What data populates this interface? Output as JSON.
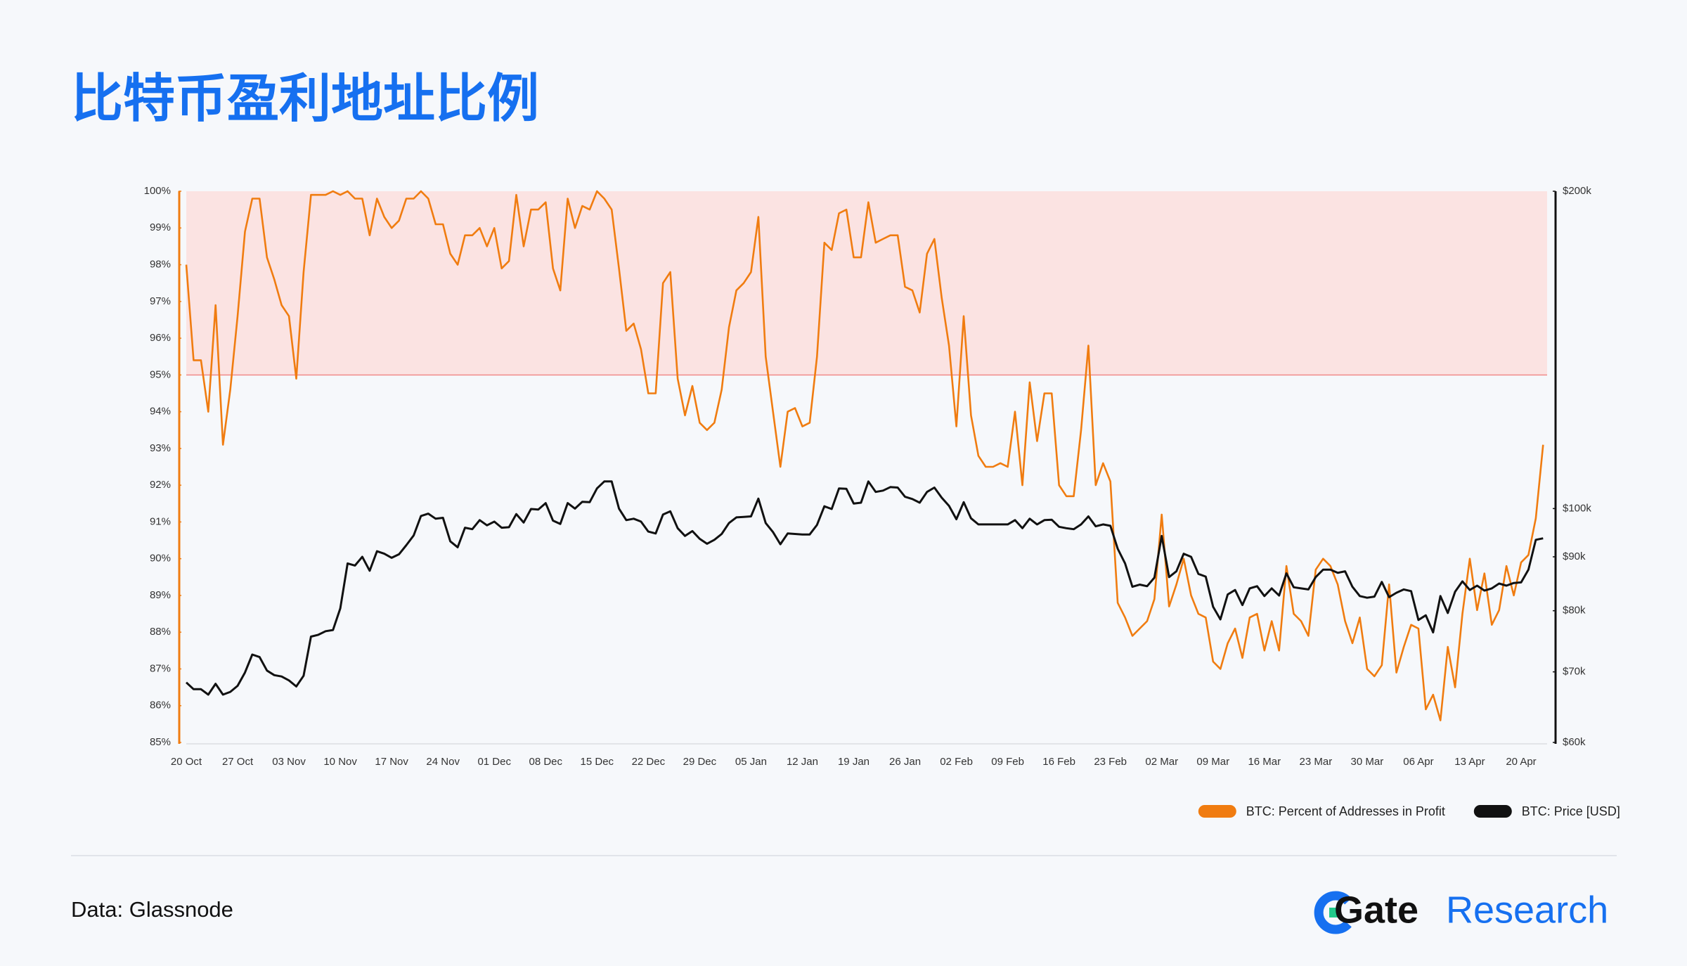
{
  "chart_data": {
    "type": "line",
    "title": "比特币盈利地址比例",
    "categories": [
      "20 Oct",
      null,
      null,
      null,
      null,
      null,
      null,
      "27 Oct",
      null,
      null,
      null,
      null,
      null,
      null,
      "03 Nov",
      null,
      null,
      null,
      null,
      null,
      null,
      "10 Nov",
      null,
      null,
      null,
      null,
      null,
      null,
      "17 Nov",
      null,
      null,
      null,
      null,
      null,
      null,
      "24 Nov",
      null,
      null,
      null,
      null,
      null,
      null,
      "01 Dec",
      null,
      null,
      null,
      null,
      null,
      null,
      "08 Dec",
      null,
      null,
      null,
      null,
      null,
      null,
      "15 Dec",
      null,
      null,
      null,
      null,
      null,
      null,
      "22 Dec",
      null,
      null,
      null,
      null,
      null,
      null,
      "29 Dec",
      null,
      null,
      null,
      null,
      null,
      null,
      "05 Jan",
      null,
      null,
      null,
      null,
      null,
      null,
      "12 Jan",
      null,
      null,
      null,
      null,
      null,
      null,
      "19 Jan",
      null,
      null,
      null,
      null,
      null,
      null,
      "26 Jan",
      null,
      null,
      null,
      null,
      null,
      null,
      "02 Feb",
      null,
      null,
      null,
      null,
      null,
      null,
      "09 Feb",
      null,
      null,
      null,
      null,
      null,
      null,
      "16 Feb",
      null,
      null,
      null,
      null,
      null,
      null,
      "23 Feb",
      null,
      null,
      null,
      null,
      null,
      null,
      "02 Mar",
      null,
      null,
      null,
      null,
      null,
      null,
      "09 Mar",
      null,
      null,
      null,
      null,
      null,
      null,
      "16 Mar",
      null,
      null,
      null,
      null,
      null,
      null,
      "23 Mar",
      null,
      null,
      null,
      null,
      null,
      null,
      "30 Mar",
      null,
      null,
      null,
      null,
      null,
      null,
      "06 Apr",
      null,
      null,
      null,
      null,
      null,
      null,
      "13 Apr",
      null,
      null,
      null,
      null,
      null,
      null,
      "20 Apr",
      null,
      null,
      null
    ],
    "series": [
      {
        "name": "BTC: Percent of Addresses in Profit",
        "color": "#f07c10",
        "axis": "y",
        "values": [
          98.0,
          95.4,
          95.4,
          94.0,
          96.9,
          93.1,
          94.6,
          96.6,
          98.9,
          99.8,
          99.8,
          98.2,
          97.6,
          96.9,
          96.6,
          94.9,
          97.8,
          99.9,
          99.9,
          99.9,
          100.0,
          99.9,
          100.0,
          99.8,
          99.8,
          98.8,
          99.8,
          99.3,
          99.0,
          99.2,
          99.8,
          99.8,
          100.0,
          99.8,
          99.1,
          99.1,
          98.3,
          98.0,
          98.8,
          98.8,
          99.0,
          98.5,
          99.0,
          97.9,
          98.1,
          99.9,
          98.5,
          99.5,
          99.5,
          99.7,
          97.9,
          97.3,
          99.8,
          99.0,
          99.6,
          99.5,
          100.0,
          99.8,
          99.5,
          97.9,
          96.2,
          96.4,
          95.7,
          94.5,
          94.5,
          97.5,
          97.8,
          94.9,
          93.9,
          94.7,
          93.7,
          93.5,
          93.7,
          94.6,
          96.3,
          97.3,
          97.5,
          97.8,
          99.3,
          95.5,
          94.0,
          92.5,
          94.0,
          94.1,
          93.6,
          93.7,
          95.5,
          98.6,
          98.4,
          99.4,
          99.5,
          98.2,
          98.2,
          99.7,
          98.6,
          98.7,
          98.8,
          98.8,
          97.4,
          97.3,
          96.7,
          98.3,
          98.7,
          97.1,
          95.8,
          93.6,
          96.6,
          93.9,
          92.8,
          92.5,
          92.5,
          92.6,
          92.5,
          94.0,
          92.0,
          94.8,
          93.2,
          94.5,
          94.5,
          92.0,
          91.7,
          91.7,
          93.5,
          95.8,
          92.0,
          92.6,
          92.1,
          88.8,
          88.4,
          87.9,
          88.1,
          88.3,
          88.9,
          91.2,
          88.7,
          89.3,
          90.0,
          89.0,
          88.5,
          88.4,
          87.2,
          87.0,
          87.7,
          88.1,
          87.3,
          88.4,
          88.5,
          87.5,
          88.3,
          87.5,
          89.8,
          88.5,
          88.3,
          87.9,
          89.7,
          90.0,
          89.8,
          89.3,
          88.3,
          87.7,
          88.4,
          87.0,
          86.8,
          87.1,
          89.3,
          86.9,
          87.6,
          88.2,
          88.1,
          85.9,
          86.3,
          85.6,
          87.6,
          86.5,
          88.5,
          90.0,
          88.6,
          89.6,
          88.2,
          88.6,
          89.8,
          89.0,
          89.9,
          90.1,
          91.1,
          93.1
        ]
      },
      {
        "name": "BTC: Price [USD]",
        "color": "#111111",
        "axis": "y2",
        "values": [
          68400,
          67400,
          67400,
          66600,
          68200,
          66600,
          67000,
          67900,
          69900,
          72700,
          72300,
          70200,
          69500,
          69300,
          68700,
          67800,
          69400,
          75600,
          75900,
          76500,
          76700,
          80400,
          88700,
          88300,
          90000,
          87300,
          91100,
          90600,
          89800,
          90500,
          92300,
          94300,
          98400,
          98900,
          97800,
          98000,
          93100,
          91900,
          95900,
          95600,
          97500,
          96400,
          97200,
          95900,
          96000,
          98800,
          97000,
          99900,
          99800,
          101200,
          97400,
          96700,
          101200,
          100000,
          101500,
          101400,
          104500,
          106100,
          106100,
          100000,
          97500,
          97800,
          97200,
          95100,
          94700,
          98700,
          99400,
          95800,
          94200,
          95200,
          93600,
          92600,
          93400,
          94600,
          96900,
          98100,
          98200,
          98300,
          102200,
          96900,
          95000,
          92500,
          94700,
          94600,
          94500,
          94500,
          96500,
          100500,
          99900,
          104500,
          104400,
          101100,
          101300,
          106100,
          103700,
          104000,
          104800,
          104700,
          102600,
          102100,
          101300,
          103700,
          104700,
          102400,
          100600,
          97700,
          101400,
          97900,
          96600,
          96600,
          96600,
          96600,
          96600,
          97500,
          95800,
          97800,
          96600,
          97500,
          97600,
          96100,
          95800,
          95600,
          96600,
          98300,
          96200,
          96600,
          96300,
          91600,
          88700,
          84300,
          84700,
          84400,
          86000,
          94200,
          86100,
          87200,
          90600,
          90000,
          86700,
          86200,
          80700,
          78500,
          82900,
          83700,
          81000,
          84000,
          84400,
          82600,
          84000,
          82700,
          86800,
          84200,
          84000,
          83800,
          86100,
          87500,
          87500,
          86900,
          87200,
          84300,
          82600,
          82300,
          82500,
          85200,
          82400,
          83200,
          83800,
          83500,
          78400,
          79200,
          76300,
          82600,
          79600,
          83400,
          85300,
          83700,
          84500,
          83600,
          84000,
          84900,
          84500,
          85000,
          85100,
          87500,
          93400,
          93700
        ]
      }
    ],
    "ylim": [
      85,
      100
    ],
    "yticks": [
      {
        "value": 85,
        "label": "85%"
      },
      {
        "value": 86,
        "label": "86%"
      },
      {
        "value": 87,
        "label": "87%"
      },
      {
        "value": 88,
        "label": "88%"
      },
      {
        "value": 89,
        "label": "89%"
      },
      {
        "value": 90,
        "label": "90%"
      },
      {
        "value": 91,
        "label": "91%"
      },
      {
        "value": 92,
        "label": "92%"
      },
      {
        "value": 93,
        "label": "93%"
      },
      {
        "value": 94,
        "label": "94%"
      },
      {
        "value": 95,
        "label": "95%"
      },
      {
        "value": 96,
        "label": "96%"
      },
      {
        "value": 97,
        "label": "97%"
      },
      {
        "value": 98,
        "label": "98%"
      },
      {
        "value": 99,
        "label": "99%"
      },
      {
        "value": 100,
        "label": "100%"
      }
    ],
    "y2lim": [
      60000,
      200000
    ],
    "y2scale": "log",
    "y2ticks": [
      {
        "value": 60000,
        "label": "$60k"
      },
      {
        "value": 70000,
        "label": "$70k"
      },
      {
        "value": 80000,
        "label": "$80k"
      },
      {
        "value": 90000,
        "label": "$90k"
      },
      {
        "value": 100000,
        "label": "$100k"
      },
      {
        "value": 200000,
        "label": "$200k"
      }
    ],
    "highlight_band": [
      95,
      100
    ],
    "grid": false,
    "legend": "bottom-right"
  },
  "footer": {
    "source": "Data: Glassnode",
    "brand": "Gate",
    "brand_suffix": "Research"
  }
}
